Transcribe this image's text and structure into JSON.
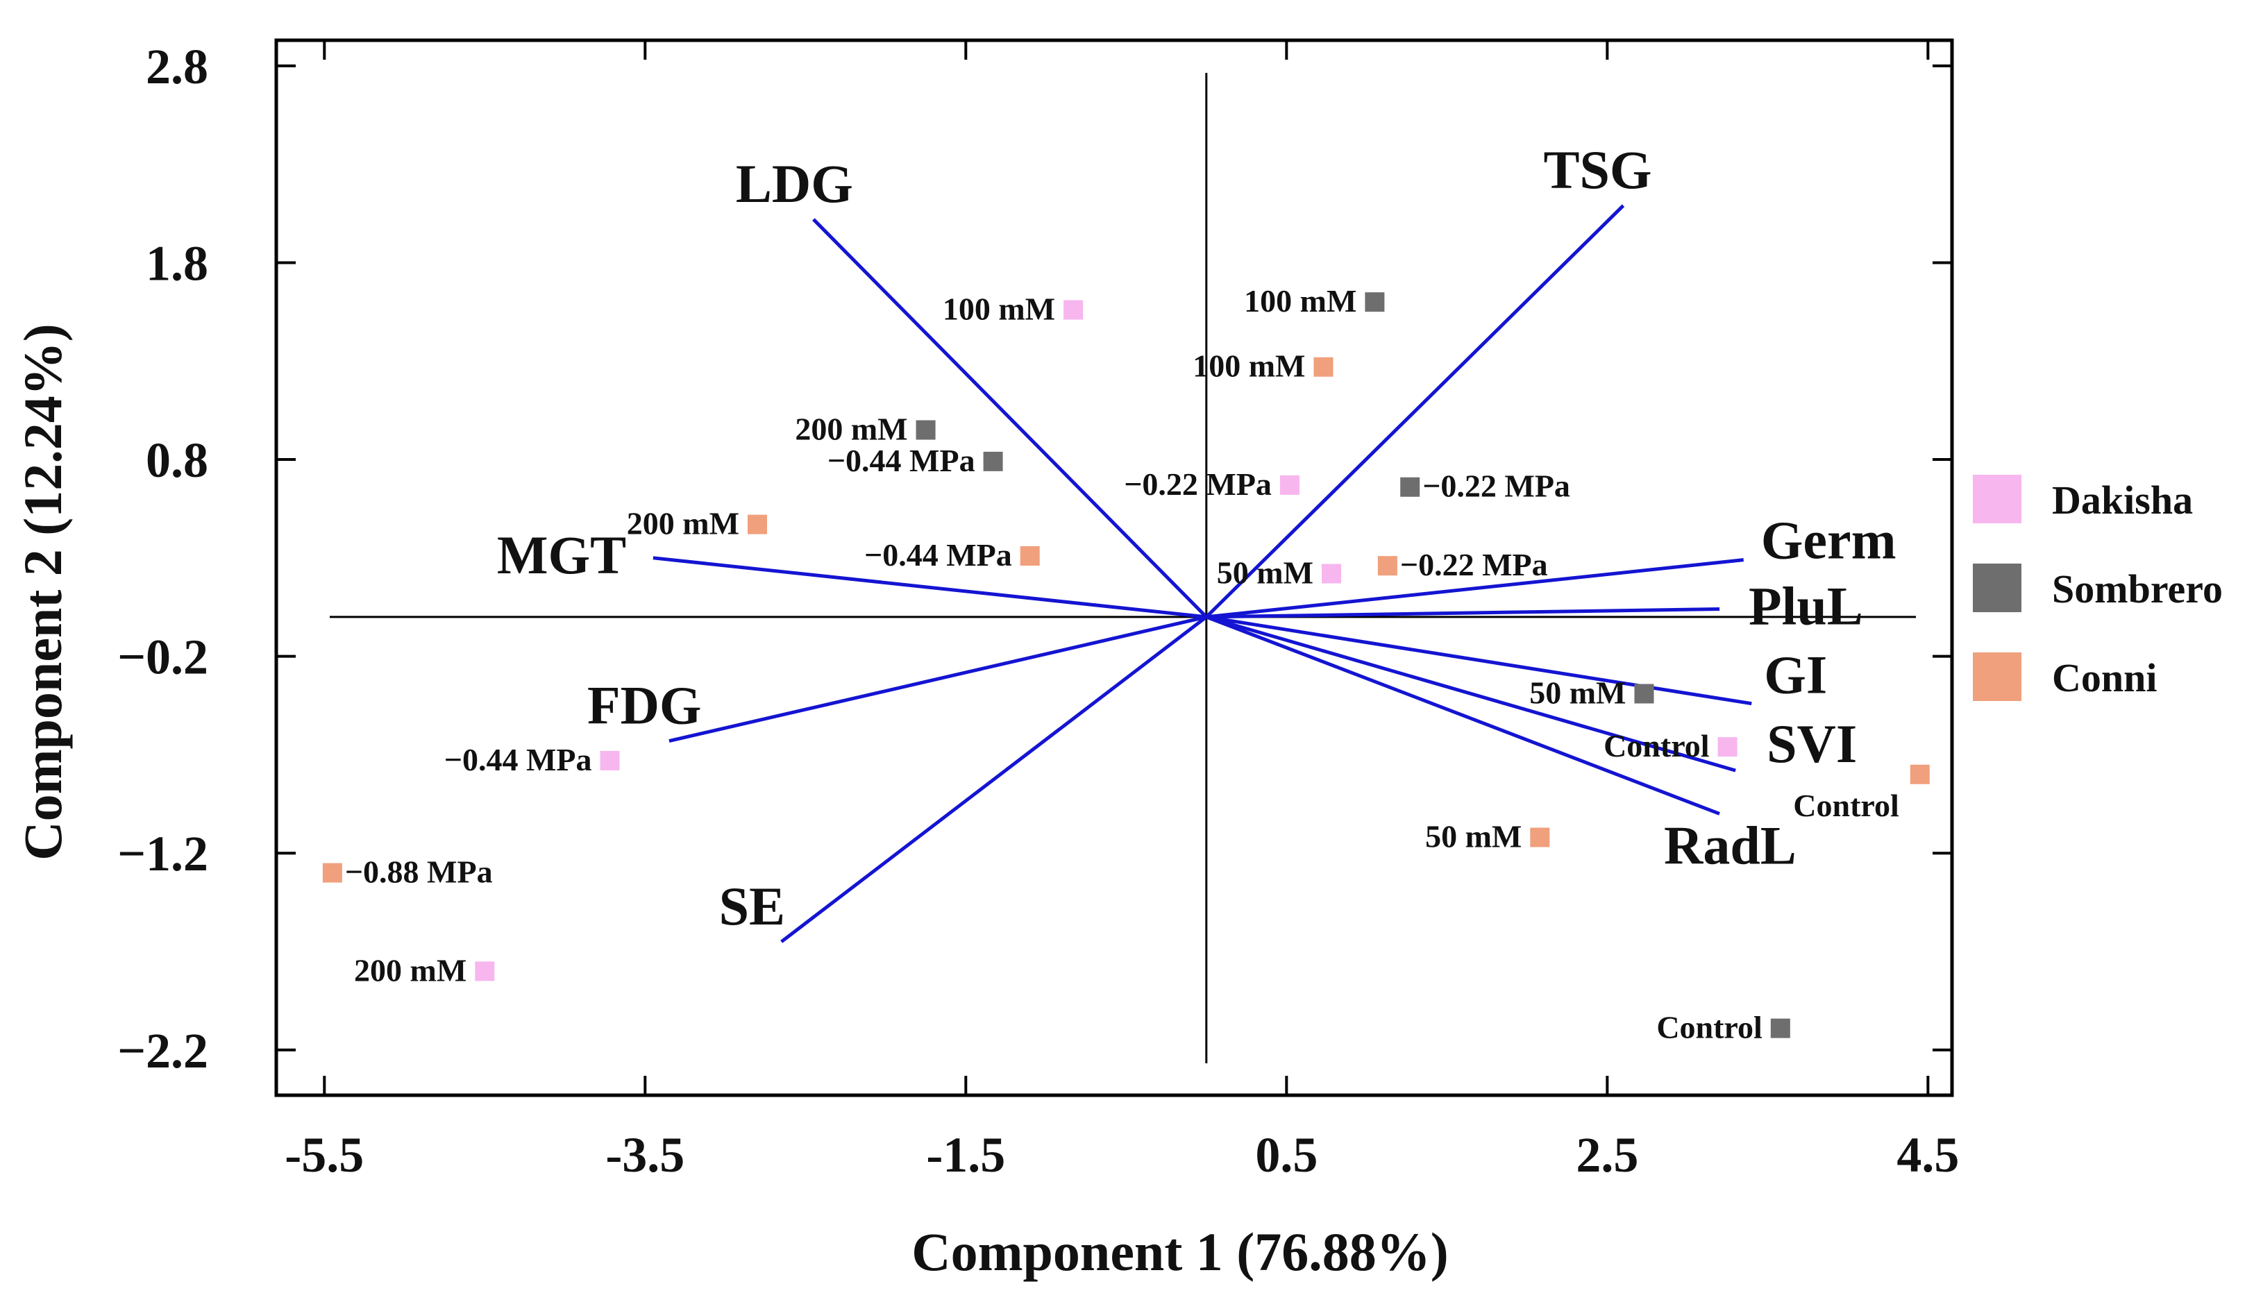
{
  "chart_data": {
    "type": "scatter",
    "subtype": "biplot",
    "xlabel": "Component 1 (76.88%)",
    "ylabel": "Component 2 (12.24%)",
    "xlim": [
      -5.8,
      4.65
    ],
    "ylim": [
      -2.43,
      2.93
    ],
    "xticks": [
      -5.5,
      -3.5,
      -1.5,
      0.5,
      2.5,
      4.5
    ],
    "xtick_labels": [
      "-5.5",
      "-3.5",
      "-1.5",
      "0.5",
      "2.5",
      "4.5"
    ],
    "yticks": [
      2.8,
      1.8,
      0.8,
      -0.2,
      -1.2,
      -2.2
    ],
    "ytick_labels": [
      "2.8",
      "1.8",
      "0.8",
      "−0.2",
      "−1.2",
      "−2.2"
    ],
    "legend": {
      "position": "right",
      "items": [
        {
          "name": "Dakisha",
          "color": "#f7b6ee"
        },
        {
          "name": "Sombrero",
          "color": "#6e6e6e"
        },
        {
          "name": "Conni",
          "color": "#f0a07c"
        }
      ]
    },
    "vectors": [
      {
        "name": "LDG",
        "x": -2.45,
        "y": 2.02
      },
      {
        "name": "TSG",
        "x": 2.6,
        "y": 2.09
      },
      {
        "name": "MGT",
        "x": -3.45,
        "y": 0.3
      },
      {
        "name": "Germ",
        "x": 3.35,
        "y": 0.29
      },
      {
        "name": "PluL",
        "x": 3.2,
        "y": 0.04
      },
      {
        "name": "FDG",
        "x": -3.35,
        "y": -0.63
      },
      {
        "name": "GI",
        "x": 3.4,
        "y": -0.44
      },
      {
        "name": "SVI",
        "x": 3.3,
        "y": -0.78
      },
      {
        "name": "RadL",
        "x": 3.2,
        "y": -1.0
      },
      {
        "name": "SE",
        "x": -2.65,
        "y": -1.65
      }
    ],
    "series": [
      {
        "name": "Dakisha",
        "points": [
          {
            "label": "100 mM",
            "x": -0.83,
            "y": 1.56
          },
          {
            "label": "−0.22 MPa",
            "x": 0.52,
            "y": 0.67
          },
          {
            "label": "50 mM",
            "x": 0.78,
            "y": 0.22
          },
          {
            "label": "Control",
            "x": 3.25,
            "y": -0.66
          },
          {
            "label": "−0.44 MPa",
            "x": -3.72,
            "y": -0.73
          },
          {
            "label": "200 mM",
            "x": -4.5,
            "y": -1.8
          }
        ]
      },
      {
        "name": "Sombrero",
        "points": [
          {
            "label": "100 mM",
            "x": 1.05,
            "y": 1.6
          },
          {
            "label": "200 mM",
            "x": -1.75,
            "y": 0.95
          },
          {
            "label": "−0.44 MPa",
            "x": -1.33,
            "y": 0.79
          },
          {
            "label": "−0.22 MPa",
            "x": 1.27,
            "y": 0.66
          },
          {
            "label": "50 mM",
            "x": 2.73,
            "y": -0.39
          },
          {
            "label": "Control",
            "x": 3.58,
            "y": -2.09
          }
        ]
      },
      {
        "name": "Conni",
        "points": [
          {
            "label": "100 mM",
            "x": 0.73,
            "y": 1.27
          },
          {
            "label": "200 mM",
            "x": -2.8,
            "y": 0.47
          },
          {
            "label": "−0.44 MPa",
            "x": -1.1,
            "y": 0.31
          },
          {
            "label": "−0.22 MPa",
            "x": 1.13,
            "y": 0.26
          },
          {
            "label": "50 mM",
            "x": 2.08,
            "y": -1.12
          },
          {
            "label": "Control",
            "x": 4.45,
            "y": -0.8
          },
          {
            "label": "−0.88 MPa",
            "x": -5.45,
            "y": -1.3
          }
        ]
      }
    ]
  }
}
